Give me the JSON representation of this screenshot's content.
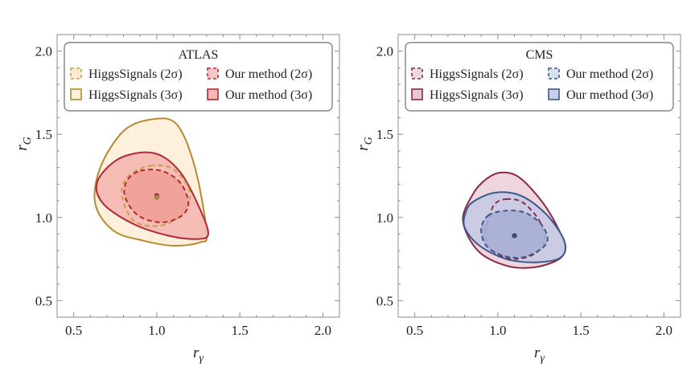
{
  "chart_data": [
    {
      "type": "contour",
      "title": "ATLAS",
      "xlabel": "r",
      "xlabel_sub": "γ",
      "ylabel": "r",
      "ylabel_sub": "G",
      "xlim": [
        0.4,
        2.1
      ],
      "ylim": [
        0.4,
        2.1
      ],
      "xticks": [
        "0.5",
        "1.0",
        "1.5",
        "2.0"
      ],
      "yticks": [
        "0.5",
        "1.0",
        "1.5",
        "2.0"
      ],
      "legend": [
        {
          "label": "HiggsSignals (2σ)",
          "style": "dashed",
          "color": "#c9a04a",
          "fill": "#fcebd0"
        },
        {
          "label": "Our method (2σ)",
          "style": "dashed",
          "color": "#b02a37",
          "fill": "#f6c7c4"
        },
        {
          "label": "HiggsSignals (3σ)",
          "style": "solid",
          "color": "#b88a2e",
          "fill": "#fdf0da"
        },
        {
          "label": "Our method (3σ)",
          "style": "solid",
          "color": "#b02a37",
          "fill": "#f5b7b1"
        }
      ],
      "series": [
        {
          "name": "HiggsSignals (3σ)",
          "color": "#b88a2e",
          "fill": "#fdf0da",
          "dashed": false,
          "points": [
            [
              0.97,
              1.59
            ],
            [
              1.12,
              1.56
            ],
            [
              1.23,
              1.3
            ],
            [
              1.3,
              0.91
            ],
            [
              1.26,
              0.85
            ],
            [
              1.1,
              0.83
            ],
            [
              0.92,
              0.86
            ],
            [
              0.74,
              0.92
            ],
            [
              0.63,
              1.08
            ],
            [
              0.66,
              1.3
            ],
            [
              0.8,
              1.52
            ]
          ]
        },
        {
          "name": "Our method (3σ)",
          "color": "#b02a37",
          "fill": "#f5b7b1",
          "dashed": false,
          "points": [
            [
              0.75,
              1.34
            ],
            [
              0.9,
              1.39
            ],
            [
              1.03,
              1.37
            ],
            [
              1.15,
              1.26
            ],
            [
              1.26,
              1.05
            ],
            [
              1.31,
              0.9
            ],
            [
              1.24,
              0.87
            ],
            [
              1.07,
              0.89
            ],
            [
              0.86,
              0.96
            ],
            [
              0.68,
              1.08
            ],
            [
              0.64,
              1.21
            ]
          ]
        },
        {
          "name": "HiggsSignals (2σ)",
          "color": "#c9a04a",
          "fill": "none",
          "dashed": true,
          "points": [
            [
              0.96,
              1.31
            ],
            [
              1.1,
              1.29
            ],
            [
              1.2,
              1.15
            ],
            [
              1.15,
              1.02
            ],
            [
              1.02,
              0.95
            ],
            [
              0.86,
              0.98
            ],
            [
              0.79,
              1.14
            ],
            [
              0.83,
              1.25
            ]
          ]
        },
        {
          "name": "Our method (2σ)",
          "color": "#b02a37",
          "fill": "#ef9f98",
          "dashed": true,
          "points": [
            [
              0.9,
              1.28
            ],
            [
              1.03,
              1.28
            ],
            [
              1.14,
              1.21
            ],
            [
              1.19,
              1.09
            ],
            [
              1.15,
              1.01
            ],
            [
              1.03,
              0.97
            ],
            [
              0.89,
              1.01
            ],
            [
              0.81,
              1.12
            ],
            [
              0.82,
              1.22
            ]
          ]
        }
      ],
      "best_fit": [
        {
          "x": 1.0,
          "y": 1.13,
          "color": "#8a2a3a"
        },
        {
          "x": 1.0,
          "y": 1.12,
          "color": "#a88a3a"
        }
      ]
    },
    {
      "type": "contour",
      "title": "CMS",
      "xlabel": "r",
      "xlabel_sub": "γ",
      "ylabel": "r",
      "ylabel_sub": "G",
      "xlim": [
        0.4,
        2.1
      ],
      "ylim": [
        0.4,
        2.1
      ],
      "xticks": [
        "0.5",
        "1.0",
        "1.5",
        "2.0"
      ],
      "yticks": [
        "0.5",
        "1.0",
        "1.5",
        "2.0"
      ],
      "legend": [
        {
          "label": "HiggsSignals (2σ)",
          "style": "dashed",
          "color": "#8a2a4a",
          "fill": "#f0d8e0"
        },
        {
          "label": "Our method (2σ)",
          "style": "dashed",
          "color": "#3a5a8a",
          "fill": "#d8e0ee"
        },
        {
          "label": "HiggsSignals (3σ)",
          "style": "solid",
          "color": "#8a2a4a",
          "fill": "#e8c8d4"
        },
        {
          "label": "Our method (3σ)",
          "style": "solid",
          "color": "#3a5a8a",
          "fill": "#c8d0e6"
        }
      ],
      "series": [
        {
          "name": "HiggsSignals (3σ)",
          "color": "#8a2a4a",
          "fill": "#ecd0da",
          "dashed": false,
          "points": [
            [
              1.02,
              1.27
            ],
            [
              1.13,
              1.24
            ],
            [
              1.27,
              1.09
            ],
            [
              1.37,
              0.92
            ],
            [
              1.4,
              0.82
            ],
            [
              1.37,
              0.75
            ],
            [
              1.22,
              0.7
            ],
            [
              1.05,
              0.71
            ],
            [
              0.88,
              0.8
            ],
            [
              0.79,
              0.98
            ],
            [
              0.85,
              1.14
            ],
            [
              0.93,
              1.23
            ]
          ]
        },
        {
          "name": "Our method (3σ)",
          "color": "#3a5a8a",
          "fill": "#c6cae4",
          "dashed": false,
          "points": [
            [
              0.86,
              1.1
            ],
            [
              0.99,
              1.15
            ],
            [
              1.14,
              1.13
            ],
            [
              1.29,
              1.02
            ],
            [
              1.4,
              0.86
            ],
            [
              1.38,
              0.76
            ],
            [
              1.23,
              0.73
            ],
            [
              1.05,
              0.75
            ],
            [
              0.89,
              0.83
            ],
            [
              0.8,
              0.94
            ],
            [
              0.81,
              1.04
            ]
          ]
        },
        {
          "name": "HiggsSignals (2σ)",
          "color": "#8a2a4a",
          "fill": "none",
          "dashed": true,
          "points": [
            [
              1.05,
              1.11
            ],
            [
              1.15,
              1.09
            ],
            [
              1.25,
              0.98
            ],
            [
              1.28,
              0.86
            ],
            [
              1.22,
              0.78
            ],
            [
              1.1,
              0.75
            ],
            [
              0.98,
              0.79
            ],
            [
              0.92,
              0.88
            ],
            [
              0.95,
              1.0
            ],
            [
              0.98,
              1.08
            ]
          ]
        },
        {
          "name": "Our method (2σ)",
          "color": "#3a5a8a",
          "fill": "#a8aed4",
          "dashed": true,
          "points": [
            [
              0.94,
              1.01
            ],
            [
              1.04,
              1.04
            ],
            [
              1.16,
              1.03
            ],
            [
              1.26,
              0.96
            ],
            [
              1.3,
              0.87
            ],
            [
              1.26,
              0.81
            ],
            [
              1.15,
              0.76
            ],
            [
              1.03,
              0.77
            ],
            [
              0.93,
              0.83
            ],
            [
              0.9,
              0.93
            ]
          ]
        }
      ],
      "best_fit": [
        {
          "x": 1.1,
          "y": 0.89,
          "color": "#3a4a7a"
        }
      ]
    }
  ]
}
